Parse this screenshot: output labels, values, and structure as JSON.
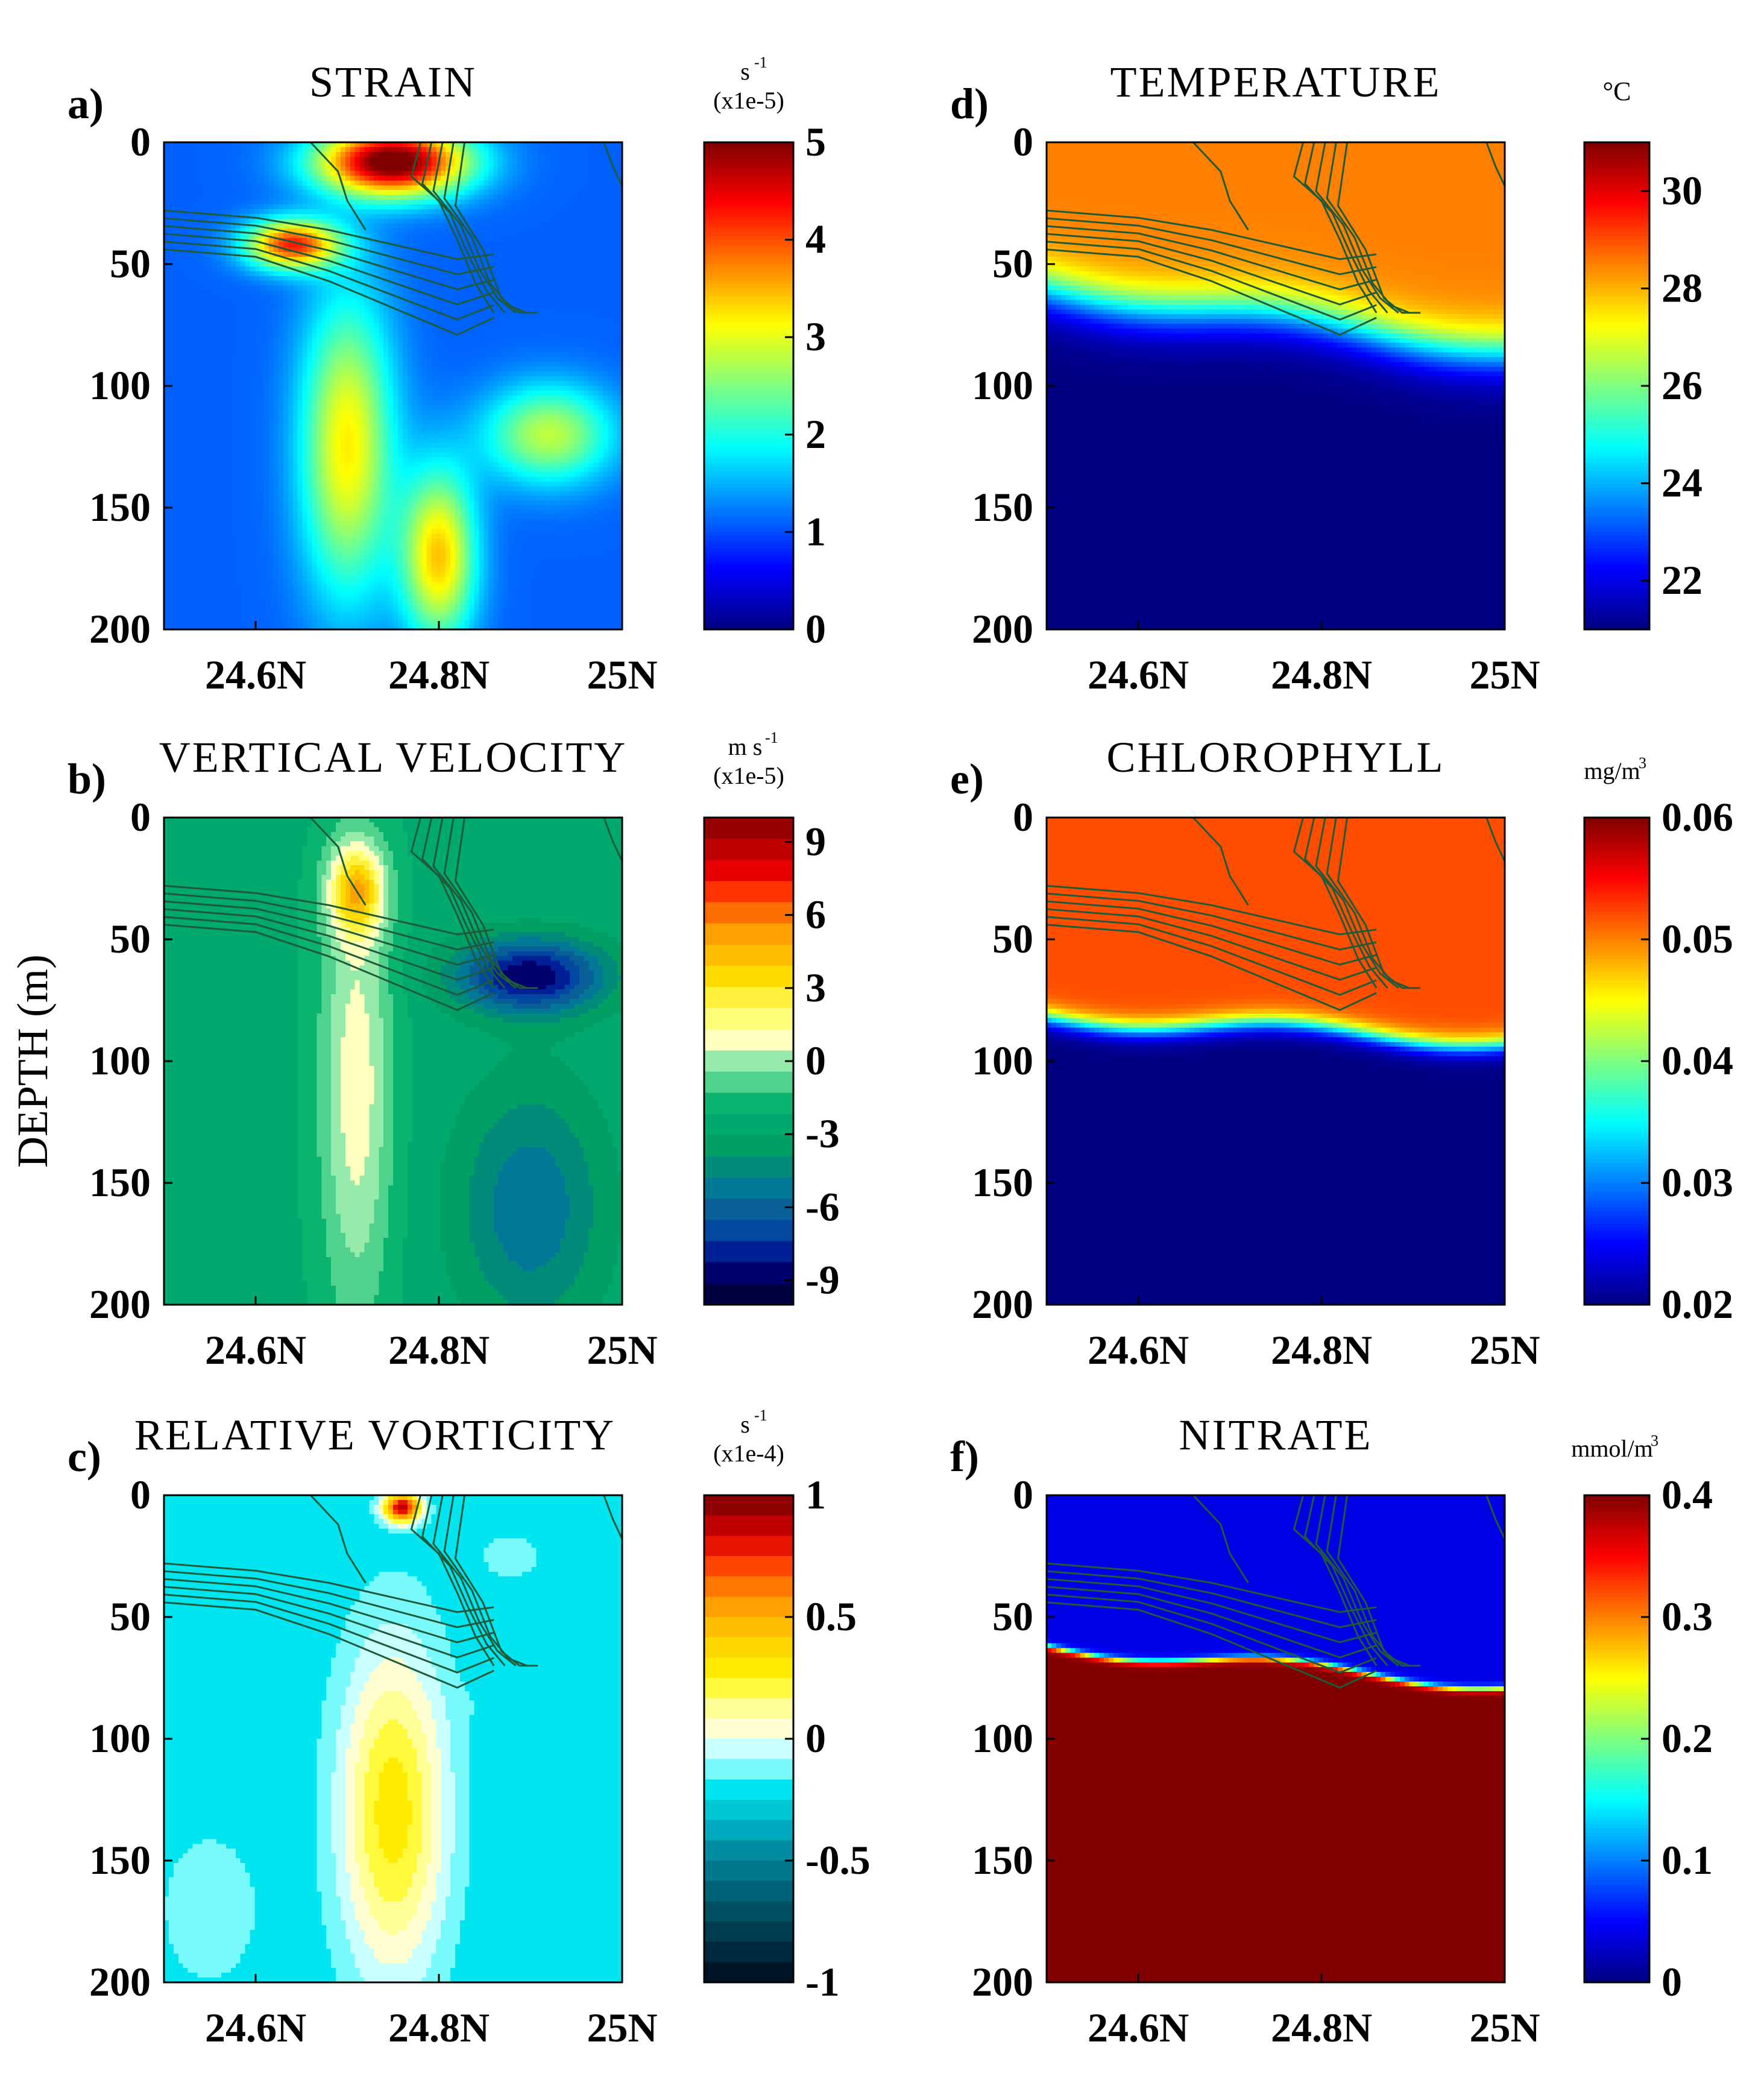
{
  "figure": {
    "ylabel": "DEPTH (m)"
  },
  "chart_data": [
    {
      "type": "heatmap",
      "letter": "a)",
      "title": "STRAIN",
      "units": [
        "s",
        "-1",
        "(x1e-5)"
      ],
      "x_ticks": [
        "24.6N",
        "24.8N",
        "25N"
      ],
      "x_tick_values": [
        24.6,
        24.8,
        25.0
      ],
      "xlim": [
        24.5,
        25.0
      ],
      "y_ticks": [
        "0",
        "50",
        "100",
        "150",
        "200"
      ],
      "y_tick_values": [
        0,
        50,
        100,
        150,
        200
      ],
      "ylim": [
        0,
        200
      ],
      "cbar_ticks": [
        "0",
        "1",
        "2",
        "3",
        "4",
        "5"
      ],
      "cbar_tick_values": [
        0,
        1,
        2,
        3,
        4,
        5
      ],
      "cbar_range": [
        0,
        5
      ],
      "colormap": "jet",
      "cbar_style": "continuous",
      "features": [
        {
          "x": 24.75,
          "y": 8,
          "rx": 0.08,
          "ry": 14,
          "value": 5.3
        },
        {
          "x": 24.64,
          "y": 42,
          "rx": 0.05,
          "ry": 10,
          "value": 4.2
        },
        {
          "x": 24.7,
          "y": 125,
          "rx": 0.05,
          "ry": 60,
          "value": 3.2
        },
        {
          "x": 24.8,
          "y": 170,
          "rx": 0.04,
          "ry": 35,
          "value": 3.4
        },
        {
          "x": 24.92,
          "y": 120,
          "rx": 0.07,
          "ry": 20,
          "value": 2.8
        }
      ],
      "contours": true
    },
    {
      "type": "heatmap",
      "letter": "b)",
      "title": "VERTICAL VELOCITY",
      "units": [
        "m s",
        "-1",
        "(x1e-5)"
      ],
      "x_ticks": [
        "24.6N",
        "24.8N",
        "25N"
      ],
      "x_tick_values": [
        24.6,
        24.8,
        25.0
      ],
      "xlim": [
        24.5,
        25.0
      ],
      "y_ticks": [
        "0",
        "50",
        "100",
        "150",
        "200"
      ],
      "y_tick_values": [
        0,
        50,
        100,
        150,
        200
      ],
      "ylim": [
        0,
        200
      ],
      "cbar_ticks": [
        "9",
        "6",
        "3",
        "0",
        "-3",
        "-6",
        "-9"
      ],
      "cbar_tick_values": [
        9,
        6,
        3,
        0,
        -3,
        -6,
        -9
      ],
      "cbar_range": [
        -10,
        10
      ],
      "colormap": "velocity",
      "cbar_style": "discrete",
      "features": [
        {
          "x": 24.71,
          "y": 110,
          "rx": 0.04,
          "ry": 95,
          "value": 1.0
        },
        {
          "x": 24.71,
          "y": 30,
          "rx": 0.03,
          "ry": 18,
          "value": 3.5
        },
        {
          "x": 24.9,
          "y": 65,
          "rx": 0.08,
          "ry": 15,
          "value": -9.0
        },
        {
          "x": 24.9,
          "y": 160,
          "rx": 0.08,
          "ry": 50,
          "value": -5.5
        }
      ],
      "contours": true
    },
    {
      "type": "heatmap",
      "letter": "c)",
      "title": "RELATIVE VORTICITY",
      "units": [
        "s",
        "-1",
        "(x1e-4)"
      ],
      "x_ticks": [
        "24.6N",
        "24.8N",
        "25N"
      ],
      "x_tick_values": [
        24.6,
        24.8,
        25.0
      ],
      "xlim": [
        24.5,
        25.0
      ],
      "y_ticks": [
        "0",
        "50",
        "100",
        "150",
        "200"
      ],
      "y_tick_values": [
        0,
        50,
        100,
        150,
        200
      ],
      "ylim": [
        0,
        200
      ],
      "cbar_ticks": [
        "1",
        "0.5",
        "0",
        "-0.5",
        "-1"
      ],
      "cbar_tick_values": [
        1,
        0.5,
        0,
        -0.5,
        -1
      ],
      "cbar_range": [
        -1,
        1
      ],
      "colormap": "vorticity",
      "cbar_style": "discrete",
      "features": [
        {
          "x": 24.76,
          "y": 5,
          "rx": 0.02,
          "ry": 6,
          "value": 0.9
        },
        {
          "x": 24.75,
          "y": 130,
          "rx": 0.06,
          "ry": 70,
          "value": 0.3
        },
        {
          "x": 24.55,
          "y": 170,
          "rx": 0.06,
          "ry": 35,
          "value": -0.1
        },
        {
          "x": 24.88,
          "y": 25,
          "rx": 0.06,
          "ry": 18,
          "value": -0.15
        },
        {
          "x": 24.87,
          "y": 85,
          "rx": 0.06,
          "ry": 10,
          "value": -0.2
        }
      ],
      "contours": true
    },
    {
      "type": "heatmap",
      "letter": "d)",
      "title": "TEMPERATURE",
      "units": [
        "°C"
      ],
      "x_ticks": [
        "24.6N",
        "24.8N",
        "25N"
      ],
      "x_tick_values": [
        24.6,
        24.8,
        25.0
      ],
      "xlim": [
        24.5,
        25.0
      ],
      "y_ticks": [
        "0",
        "50",
        "100",
        "150",
        "200"
      ],
      "y_tick_values": [
        0,
        50,
        100,
        150,
        200
      ],
      "ylim": [
        0,
        200
      ],
      "cbar_ticks": [
        "30",
        "28",
        "26",
        "24",
        "22"
      ],
      "cbar_tick_values": [
        30,
        28,
        26,
        24,
        22
      ],
      "cbar_range": [
        21,
        31
      ],
      "colormap": "jet",
      "cbar_style": "continuous",
      "profile": {
        "top": 28.5,
        "bottom": 21,
        "depth_left": 60,
        "depth_right": 85,
        "width": 25
      },
      "contours": true
    },
    {
      "type": "heatmap",
      "letter": "e)",
      "title": "CHLOROPHYLL",
      "units": [
        "mg/m",
        "3"
      ],
      "x_ticks": [
        "24.6N",
        "24.8N",
        "25N"
      ],
      "x_tick_values": [
        24.6,
        24.8,
        25.0
      ],
      "xlim": [
        24.5,
        25.0
      ],
      "y_ticks": [
        "0",
        "50",
        "100",
        "150",
        "200"
      ],
      "y_tick_values": [
        0,
        50,
        100,
        150,
        200
      ],
      "ylim": [
        0,
        200
      ],
      "cbar_ticks": [
        "0.06",
        "0.05",
        "0.04",
        "0.03",
        "0.02"
      ],
      "cbar_tick_values": [
        0.06,
        0.05,
        0.04,
        0.03,
        0.02
      ],
      "cbar_range": [
        0.02,
        0.06
      ],
      "colormap": "jet",
      "cbar_style": "continuous",
      "profile": {
        "top": 0.052,
        "bottom": 0.02,
        "depth_left": 82,
        "depth_right": 92,
        "width": 10
      },
      "contours": true
    },
    {
      "type": "heatmap",
      "letter": "f)",
      "title": "NITRATE",
      "units": [
        "mmol/m",
        "3"
      ],
      "x_ticks": [
        "24.6N",
        "24.8N",
        "25N"
      ],
      "x_tick_values": [
        24.6,
        24.8,
        25.0
      ],
      "xlim": [
        24.5,
        25.0
      ],
      "y_ticks": [
        "0",
        "50",
        "100",
        "150",
        "200"
      ],
      "y_tick_values": [
        0,
        50,
        100,
        150,
        200
      ],
      "ylim": [
        0,
        200
      ],
      "cbar_ticks": [
        "0.4",
        "0.3",
        "0.2",
        "0.1",
        "0"
      ],
      "cbar_tick_values": [
        0.4,
        0.3,
        0.2,
        0.1,
        0
      ],
      "cbar_range": [
        0,
        0.4
      ],
      "colormap": "jet",
      "cbar_style": "continuous",
      "profile": {
        "top": 0.04,
        "bottom": 0.4,
        "depth_left": 62,
        "depth_right": 78,
        "width": 3
      },
      "contours": true
    }
  ]
}
